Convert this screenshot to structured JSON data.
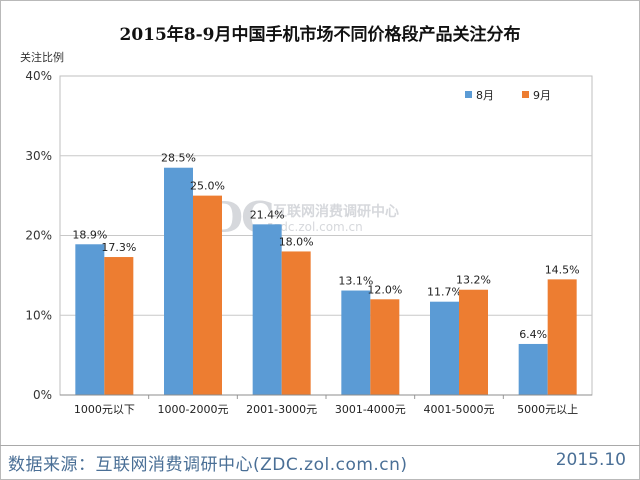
{
  "chart_data": {
    "type": "bar",
    "title": "2015年8-9月中国手机市场不同价格段产品关注分布",
    "ylabel": "关注比例",
    "xlabel": "",
    "ylim": [
      0,
      40
    ],
    "yticks": [
      "0%",
      "10%",
      "20%",
      "30%",
      "40%"
    ],
    "grid": true,
    "legend_position": "top-right",
    "categories": [
      "1000元以下",
      "1000-2000元",
      "2001-3000元",
      "3001-4000元",
      "4001-5000元",
      "5000元以上"
    ],
    "series": [
      {
        "name": "8月",
        "color": "#5b9bd5",
        "values": [
          18.9,
          28.5,
          21.4,
          13.1,
          11.7,
          6.4
        ],
        "labels": [
          "18.9%",
          "28.5%",
          "21.4%",
          "13.1%",
          "11.7%",
          "6.4%"
        ]
      },
      {
        "name": "9月",
        "color": "#ed7d31",
        "values": [
          17.3,
          25.0,
          18.0,
          12.0,
          13.2,
          14.5
        ],
        "labels": [
          "17.3%",
          "25.0%",
          "18.0%",
          "12.0%",
          "13.2%",
          "14.5%"
        ]
      }
    ]
  },
  "watermark": {
    "logo": "ZDC",
    "name": "互联网消费调研中心",
    "url": "zdc.zol.com.cn"
  },
  "footer": {
    "source": "数据来源：互联网消费调研中心(ZDC.zol.com.cn)",
    "date": "2015.10"
  }
}
